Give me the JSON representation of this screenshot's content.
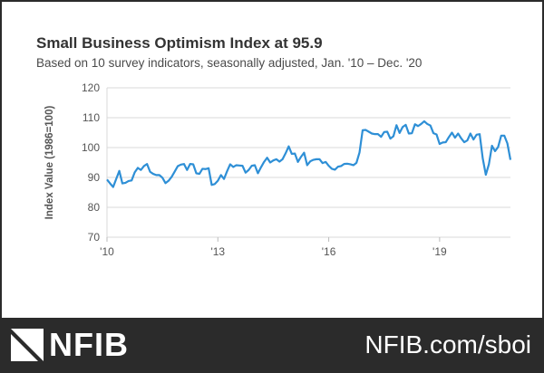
{
  "title": "Small Business Optimism Index at 95.9",
  "subtitle": "Based on 10 survey indicators, seasonally adjusted, Jan. '10 – Dec. '20",
  "footer": {
    "logo_text": "NFIB",
    "url": "NFIB.com/sboi"
  },
  "colors": {
    "line": "#2e8fd6",
    "grid": "#d9d9d9",
    "footer_bg": "#2b2b2b"
  },
  "chart_data": {
    "type": "line",
    "title": "Small Business Optimism Index at 95.9",
    "subtitle": "Based on 10 survey indicators, seasonally adjusted, Jan. '10 – Dec. '20",
    "xlabel": "",
    "ylabel": "Index Value (1986=100)",
    "ylim": [
      70,
      120
    ],
    "yticks": [
      70,
      80,
      90,
      100,
      110,
      120
    ],
    "xticks": [
      {
        "x": 2010,
        "label": "'10"
      },
      {
        "x": 2013,
        "label": "'13"
      },
      {
        "x": 2016,
        "label": "'16"
      },
      {
        "x": 2019,
        "label": "'19"
      }
    ],
    "xlim": [
      2010,
      2020.917
    ],
    "grid": "horizontal",
    "series": [
      {
        "values": [
          89.3,
          88.0,
          86.8,
          89.5,
          92.2,
          88.0,
          88.2,
          88.8,
          89.0,
          91.7,
          93.2,
          92.5,
          93.8,
          94.5,
          91.9,
          91.2,
          90.8,
          90.8,
          89.9,
          88.1,
          88.9,
          90.2,
          92.0,
          93.8,
          94.3,
          94.5,
          92.5,
          94.5,
          94.4,
          91.4,
          91.2,
          92.9,
          92.8,
          93.1,
          87.5,
          87.8,
          88.9,
          90.8,
          89.5,
          92.1,
          94.4,
          93.5,
          94.1,
          94.0,
          93.9,
          91.6,
          92.5,
          93.9,
          94.1,
          91.4,
          93.4,
          95.2,
          96.6,
          95.0,
          95.7,
          96.1,
          95.3,
          96.1,
          98.1,
          100.4,
          97.9,
          98.0,
          95.2,
          96.9,
          98.3,
          94.1,
          95.4,
          95.9,
          96.1,
          96.1,
          94.8,
          95.2,
          93.9,
          92.9,
          92.6,
          93.6,
          93.8,
          94.5,
          94.6,
          94.4,
          94.1,
          94.9,
          98.4,
          105.8,
          105.9,
          105.3,
          104.7,
          104.5,
          104.5,
          103.6,
          105.2,
          105.3,
          103.0,
          103.8,
          107.5,
          104.9,
          106.9,
          107.6,
          104.7,
          104.8,
          107.8,
          107.2,
          107.9,
          108.8,
          107.9,
          107.4,
          104.8,
          104.4,
          101.2,
          101.7,
          101.8,
          103.5,
          105.0,
          103.3,
          104.7,
          103.1,
          101.8,
          102.4,
          104.7,
          102.7,
          104.3,
          104.5,
          96.4,
          90.9,
          94.4,
          100.6,
          98.8,
          100.2,
          104.0,
          104.0,
          101.4,
          95.9
        ]
      }
    ]
  }
}
